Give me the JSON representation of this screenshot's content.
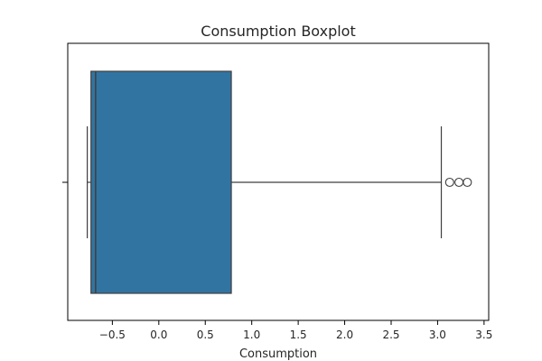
{
  "chart_data": {
    "type": "boxplot",
    "title": "Consumption Boxplot",
    "xlabel": "Consumption",
    "ylabel": "",
    "orientation": "horizontal",
    "xlim": [
      -0.98,
      3.55
    ],
    "xticks": [
      -0.5,
      0.0,
      0.5,
      1.0,
      1.5,
      2.0,
      2.5,
      3.0,
      3.5
    ],
    "xtick_labels": [
      "−0.5",
      "0.0",
      "0.5",
      "1.0",
      "1.5",
      "2.0",
      "2.5",
      "3.0",
      "3.5"
    ],
    "grid": false,
    "box": {
      "whisker_low": -0.77,
      "q1": -0.73,
      "median": -0.68,
      "q3": 0.78,
      "whisker_high": 3.04,
      "outliers": [
        3.13,
        3.23,
        3.32
      ],
      "color": "#3274a1",
      "edge_color": "#3f3f3f"
    }
  }
}
